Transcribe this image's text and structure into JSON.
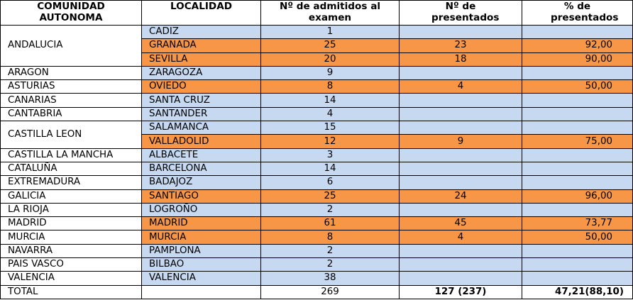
{
  "headers": [
    "COMUNIDAD AUTONOMA",
    "LOCALIDAD",
    "Nº de admitidos al examen",
    "Nº de presentados",
    "% de presentados"
  ],
  "colors": {
    "blue": "#c6d9f1",
    "orange": "#f79646"
  },
  "rows": [
    {
      "comunidad": "ANDALUCIA",
      "span": 3,
      "localidad": "CADIZ",
      "admitidos": "1",
      "presentados": "",
      "porcentaje": "",
      "color": "blue"
    },
    {
      "comunidad": null,
      "localidad": "GRANADA",
      "admitidos": "25",
      "presentados": "23",
      "porcentaje": "92,00",
      "color": "orange"
    },
    {
      "comunidad": null,
      "localidad": "SEVILLA",
      "admitidos": "20",
      "presentados": "18",
      "porcentaje": "90,00",
      "color": "orange"
    },
    {
      "comunidad": "ARAGON",
      "span": 1,
      "localidad": "ZARAGOZA",
      "admitidos": "9",
      "presentados": "",
      "porcentaje": "",
      "color": "blue"
    },
    {
      "comunidad": "ASTURIAS",
      "span": 1,
      "localidad": "OVIEDO",
      "admitidos": "8",
      "presentados": "4",
      "porcentaje": "50,00",
      "color": "orange"
    },
    {
      "comunidad": "CANARIAS",
      "span": 1,
      "localidad": "SANTA CRUZ",
      "admitidos": "14",
      "presentados": "",
      "porcentaje": "",
      "color": "blue"
    },
    {
      "comunidad": "CANTABRIA",
      "span": 1,
      "localidad": "SANTANDER",
      "admitidos": "4",
      "presentados": "",
      "porcentaje": "",
      "color": "blue"
    },
    {
      "comunidad": "CASTILLA LEON",
      "span": 2,
      "localidad": "SALAMANCA",
      "admitidos": "15",
      "presentados": "",
      "porcentaje": "",
      "color": "blue"
    },
    {
      "comunidad": null,
      "localidad": "VALLADOLID",
      "admitidos": "12",
      "presentados": "9",
      "porcentaje": "75,00",
      "color": "orange"
    },
    {
      "comunidad": "CASTILLA LA MANCHA",
      "span": 1,
      "localidad": "ALBACETE",
      "admitidos": "3",
      "presentados": "",
      "porcentaje": "",
      "color": "blue"
    },
    {
      "comunidad": "CATALUÑA",
      "span": 1,
      "localidad": "BARCELONA",
      "admitidos": "14",
      "presentados": "",
      "porcentaje": "",
      "color": "blue"
    },
    {
      "comunidad": "EXTREMADURA",
      "span": 1,
      "localidad": "BADAJOZ",
      "admitidos": "6",
      "presentados": "",
      "porcentaje": "",
      "color": "blue"
    },
    {
      "comunidad": "GALICIA",
      "span": 1,
      "localidad": "SANTIAGO",
      "admitidos": "25",
      "presentados": "24",
      "porcentaje": "96,00",
      "color": "orange"
    },
    {
      "comunidad": "LA RIOJA",
      "span": 1,
      "localidad": "LOGROÑO",
      "admitidos": "2",
      "presentados": "",
      "porcentaje": "",
      "color": "blue"
    },
    {
      "comunidad": "MADRID",
      "span": 1,
      "localidad": "MADRID",
      "admitidos": "61",
      "presentados": "45",
      "porcentaje": "73,77",
      "color": "orange"
    },
    {
      "comunidad": "MURCIA",
      "span": 1,
      "localidad": "MURCIA",
      "admitidos": "8",
      "presentados": "4",
      "porcentaje": "50,00",
      "color": "orange"
    },
    {
      "comunidad": "NAVARRA",
      "span": 1,
      "localidad": "PAMPLONA",
      "admitidos": "2",
      "presentados": "",
      "porcentaje": "",
      "color": "blue"
    },
    {
      "comunidad": "PAIS VASCO",
      "span": 1,
      "localidad": "BILBAO",
      "admitidos": "2",
      "presentados": "",
      "porcentaje": "",
      "color": "blue"
    },
    {
      "comunidad": "VALENCIA",
      "span": 1,
      "localidad": "VALENCIA",
      "admitidos": "38",
      "presentados": "",
      "porcentaje": "",
      "color": "blue"
    }
  ],
  "total": {
    "label": "TOTAL",
    "localidad": "",
    "admitidos": "269",
    "presentados": "127 (237)",
    "porcentaje": "47,21(88,10)"
  }
}
